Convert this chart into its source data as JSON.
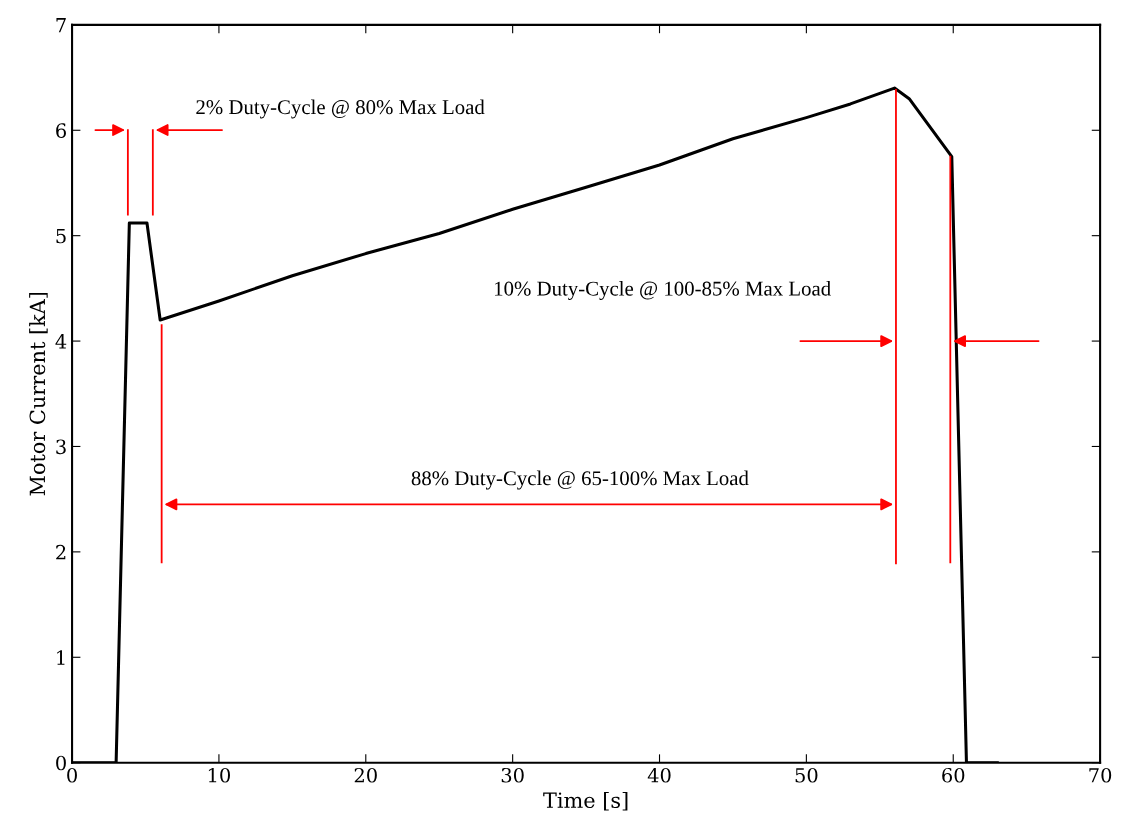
{
  "chart_data": {
    "type": "line",
    "xlabel": "Time [s]",
    "ylabel": "Motor Current [kA]",
    "x": [
      0,
      3,
      3.9,
      5.1,
      6,
      10,
      15,
      20,
      25,
      30,
      35,
      40,
      45,
      50,
      53,
      56,
      57,
      59.9,
      60.9,
      63
    ],
    "series": [
      {
        "color": "#000000",
        "values": [
          0,
          0,
          5.12,
          5.12,
          4.2,
          4.38,
          4.62,
          4.83,
          5.02,
          5.25,
          5.46,
          5.67,
          5.92,
          6.12,
          6.25,
          6.4,
          6.3,
          5.75,
          0,
          0
        ]
      }
    ],
    "xlim": [
      0,
      70
    ],
    "xticks": [
      0,
      10,
      20,
      30,
      40,
      50,
      60,
      70
    ],
    "ylim": [
      0,
      7
    ],
    "yticks": [
      0,
      1,
      2,
      3,
      4,
      5,
      6,
      7
    ],
    "ref_lines": [
      {
        "axis": "x",
        "value": 56.1,
        "color": "#ff0000",
        "line_style": "solid"
      }
    ],
    "grid": false,
    "legend": false,
    "marker": "none",
    "line_style": "solid",
    "annotations": [
      "2% Duty-Cycle @ 80% Max Load",
      "10% Duty-Cycle @ 100-85% Max Load",
      "88% Duty-Cycle @ 65-100% Max Load"
    ]
  }
}
